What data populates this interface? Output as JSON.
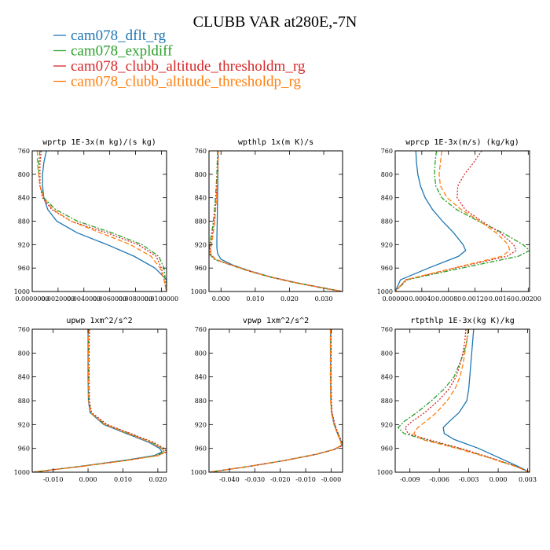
{
  "figure": {
    "title": "CLUBB VAR at280E,-7N",
    "legend": [
      {
        "label": "cam078_dflt_rg",
        "color": "#1f77b4"
      },
      {
        "label": "cam078_expldiff",
        "color": "#2ca02c"
      },
      {
        "label": "cam078_clubb_altitude_thresholdm_rg",
        "color": "#d62728"
      },
      {
        "label": "cam078_clubb_altitude_thresholdp_rg",
        "color": "#ff7f0e"
      }
    ]
  },
  "chart_data": [
    {
      "type": "line",
      "title": "wprtp  1E-3x(m kg)/(s kg)",
      "xlim": [
        0.0,
        0.0104
      ],
      "ylim": [
        760,
        1000
      ],
      "y_inverted": true,
      "yticks": [
        760,
        800,
        840,
        880,
        920,
        960,
        1000
      ],
      "ytick_labels": [
        "760",
        "800",
        "840",
        "880",
        "920",
        "960",
        "1000"
      ],
      "xticks": [
        0.0,
        0.002,
        0.004,
        0.006,
        0.008,
        0.01
      ],
      "xtick_labels": [
        "0.0000000",
        "0.0020000",
        "0.0040000",
        "0.0060000",
        "0.0080000",
        "0.0100000"
      ],
      "y": [
        760,
        780,
        800,
        820,
        840,
        860,
        880,
        900,
        920,
        940,
        960,
        980,
        990,
        1000
      ],
      "series": [
        {
          "color": "#1f77b4",
          "dash": "",
          "values": [
            0.0011,
            0.0009,
            0.0008,
            0.0008,
            0.0009,
            0.0012,
            0.0019,
            0.0035,
            0.0058,
            0.0079,
            0.0095,
            0.0104,
            0.0104,
            0.0104
          ]
        },
        {
          "color": "#2ca02c",
          "dash": "6,2,2,2",
          "values": [
            0.0006,
            0.0005,
            0.0005,
            0.0006,
            0.0009,
            0.0018,
            0.0035,
            0.0062,
            0.0085,
            0.0098,
            0.0102,
            0.0103,
            0.0104,
            0.0104
          ]
        },
        {
          "color": "#d62728",
          "dash": "2,2",
          "values": [
            0.0007,
            0.0006,
            0.0006,
            0.0006,
            0.0008,
            0.0015,
            0.003,
            0.0058,
            0.0082,
            0.0096,
            0.01,
            0.0102,
            0.0103,
            0.0104
          ]
        },
        {
          "color": "#ff7f0e",
          "dash": "6,3",
          "values": [
            0.0004,
            0.0004,
            0.0005,
            0.0006,
            0.0009,
            0.0016,
            0.003,
            0.0053,
            0.0076,
            0.0092,
            0.0099,
            0.0102,
            0.0103,
            0.0104
          ]
        }
      ]
    },
    {
      "type": "line",
      "title": "wpthlp  1x(m K)/s",
      "xlim": [
        -0.0035,
        0.0355
      ],
      "ylim": [
        760,
        1000
      ],
      "y_inverted": true,
      "yticks": [
        760,
        800,
        840,
        880,
        920,
        960,
        1000
      ],
      "ytick_labels": [
        "760",
        "800",
        "840",
        "880",
        "920",
        "960",
        "1000"
      ],
      "xticks": [
        0.0,
        0.01,
        0.02,
        0.03
      ],
      "xtick_labels": [
        "0.000",
        "0.010",
        "0.020",
        "0.030"
      ],
      "y": [
        760,
        800,
        840,
        880,
        910,
        925,
        935,
        945,
        955,
        965,
        975,
        985,
        995,
        1000
      ],
      "series": [
        {
          "color": "#1f77b4",
          "dash": "",
          "values": [
            -0.0008,
            -0.0009,
            -0.001,
            -0.0011,
            -0.0012,
            -0.0012,
            -0.001,
            0.0,
            0.0035,
            0.0085,
            0.0145,
            0.022,
            0.031,
            0.0355
          ]
        },
        {
          "color": "#2ca02c",
          "dash": "6,2,2,2",
          "values": [
            -0.001,
            -0.0012,
            -0.0016,
            -0.0022,
            -0.003,
            -0.0034,
            -0.0035,
            -0.002,
            0.003,
            0.008,
            0.014,
            0.0215,
            0.0305,
            0.0355
          ]
        },
        {
          "color": "#d62728",
          "dash": "2,2",
          "values": [
            -0.0009,
            -0.0011,
            -0.0014,
            -0.002,
            -0.0027,
            -0.0031,
            -0.0032,
            -0.0018,
            0.003,
            0.0082,
            0.0142,
            0.0217,
            0.0307,
            0.0355
          ]
        },
        {
          "color": "#ff7f0e",
          "dash": "6,3",
          "values": [
            -0.0008,
            -0.001,
            -0.0013,
            -0.0018,
            -0.0025,
            -0.0029,
            -0.003,
            -0.0016,
            0.0031,
            0.0083,
            0.0143,
            0.0218,
            0.0308,
            0.0355
          ]
        }
      ]
    },
    {
      "type": "line",
      "title": "wprcp  1E-3x(m/s) (kg/kg)",
      "xlim": [
        0.0,
        0.00202
      ],
      "ylim": [
        760,
        1000
      ],
      "y_inverted": true,
      "yticks": [
        760,
        800,
        840,
        880,
        920,
        960,
        1000
      ],
      "ytick_labels": [
        "760",
        "800",
        "840",
        "880",
        "920",
        "960",
        "1000"
      ],
      "xticks": [
        0.0,
        0.0004,
        0.0008,
        0.0012,
        0.0016,
        0.002
      ],
      "xtick_labels": [
        "0.00000",
        "0.00040",
        "0.00080",
        "0.00120",
        "0.00160",
        "0.00200"
      ],
      "y": [
        760,
        780,
        800,
        820,
        840,
        860,
        880,
        900,
        920,
        930,
        940,
        960,
        980,
        1000
      ],
      "series": [
        {
          "color": "#1f77b4",
          "dash": "",
          "values": [
            0.00031,
            0.00032,
            0.00034,
            0.00038,
            0.00045,
            0.00056,
            0.00071,
            0.00088,
            0.00102,
            0.00106,
            0.00095,
            0.0005,
            8e-05,
            0.0
          ]
        },
        {
          "color": "#2ca02c",
          "dash": "6,2,2,2",
          "values": [
            0.00062,
            0.0006,
            0.00059,
            0.00061,
            0.0007,
            0.00092,
            0.00125,
            0.00162,
            0.00192,
            0.00202,
            0.00185,
            0.001,
            0.00018,
            0.0
          ]
        },
        {
          "color": "#d62728",
          "dash": "2,2",
          "values": [
            0.0013,
            0.00118,
            0.00104,
            0.00094,
            0.00093,
            0.00105,
            0.0013,
            0.00158,
            0.00178,
            0.00182,
            0.00168,
            0.0009,
            0.00016,
            0.0
          ]
        },
        {
          "color": "#ff7f0e",
          "dash": "6,3",
          "values": [
            0.0007,
            0.00068,
            0.00066,
            0.00068,
            0.00078,
            0.00099,
            0.00127,
            0.00152,
            0.0017,
            0.00172,
            0.0016,
            0.00088,
            0.00016,
            0.0
          ]
        }
      ]
    },
    {
      "type": "line",
      "title": "upwp  1xm^2/s^2",
      "xlim": [
        -0.016,
        0.0225
      ],
      "ylim": [
        760,
        1000
      ],
      "y_inverted": true,
      "yticks": [
        760,
        800,
        840,
        880,
        920,
        960,
        1000
      ],
      "ytick_labels": [
        "760",
        "800",
        "840",
        "880",
        "920",
        "960",
        "1000"
      ],
      "xticks": [
        -0.01,
        0.0,
        0.01,
        0.02
      ],
      "xtick_labels": [
        "-0.010",
        "0.000",
        "0.010",
        "0.020"
      ],
      "y": [
        760,
        800,
        840,
        880,
        900,
        920,
        935,
        950,
        960,
        966,
        972,
        980,
        990,
        1000
      ],
      "series": [
        {
          "color": "#1f77b4",
          "dash": "",
          "values": [
            0.0,
            0.0,
            0.0,
            0.0001,
            0.0006,
            0.0045,
            0.011,
            0.0175,
            0.0205,
            0.0212,
            0.019,
            0.0105,
            -0.002,
            -0.016
          ]
        },
        {
          "color": "#2ca02c",
          "dash": "6,2,2,2",
          "values": [
            0.0002,
            0.0002,
            0.0002,
            0.0003,
            0.0008,
            0.005,
            0.0118,
            0.0183,
            0.0212,
            0.0218,
            0.0195,
            0.011,
            -0.0018,
            -0.016
          ]
        },
        {
          "color": "#d62728",
          "dash": "2,2",
          "values": [
            0.0004,
            0.0003,
            0.0003,
            0.0004,
            0.001,
            0.0055,
            0.0122,
            0.0188,
            0.0218,
            0.0225,
            0.02,
            0.0112,
            -0.0016,
            -0.016
          ]
        },
        {
          "color": "#ff7f0e",
          "dash": "6,3",
          "values": [
            0.0001,
            0.0001,
            0.0001,
            0.0002,
            0.0007,
            0.0048,
            0.0114,
            0.018,
            0.021,
            0.0222,
            0.0202,
            0.0114,
            -0.0015,
            -0.016
          ]
        }
      ]
    },
    {
      "type": "line",
      "title": "vpwp  1xm^2/s^2",
      "xlim": [
        -0.048,
        0.0045
      ],
      "ylim": [
        760,
        1000
      ],
      "y_inverted": true,
      "yticks": [
        760,
        800,
        840,
        880,
        920,
        960,
        1000
      ],
      "ytick_labels": [
        "760",
        "800",
        "840",
        "880",
        "920",
        "960",
        "1000"
      ],
      "xticks": [
        -0.04,
        -0.03,
        -0.02,
        -0.01,
        0.0
      ],
      "xtick_labels": [
        "-0.040",
        "-0.030",
        "-0.020",
        "-0.010",
        "-0.000"
      ],
      "y": [
        760,
        800,
        840,
        880,
        900,
        920,
        935,
        948,
        955,
        962,
        970,
        980,
        990,
        1000
      ],
      "series": [
        {
          "color": "#1f77b4",
          "dash": "",
          "values": [
            -0.0002,
            -0.0002,
            -0.0002,
            -0.0001,
            0.0002,
            0.0012,
            0.0025,
            0.0038,
            0.0042,
            0.001,
            -0.006,
            -0.018,
            -0.032,
            -0.048
          ]
        },
        {
          "color": "#2ca02c",
          "dash": "6,2,2,2",
          "values": [
            -0.0001,
            -0.0001,
            -0.0001,
            0.0,
            0.0003,
            0.0014,
            0.0027,
            0.004,
            0.0044,
            0.0012,
            -0.0058,
            -0.0178,
            -0.0318,
            -0.048
          ]
        },
        {
          "color": "#d62728",
          "dash": "2,2",
          "values": [
            0.0,
            0.0,
            0.0,
            0.0001,
            0.0004,
            0.0015,
            0.0028,
            0.0041,
            0.0045,
            0.0013,
            -0.0057,
            -0.0177,
            -0.0317,
            -0.048
          ]
        },
        {
          "color": "#ff7f0e",
          "dash": "6,3",
          "values": [
            -0.0003,
            -0.0003,
            -0.0003,
            -0.0002,
            0.0001,
            0.0011,
            0.0024,
            0.0037,
            0.0041,
            0.0009,
            -0.0061,
            -0.0181,
            -0.0321,
            -0.048
          ]
        }
      ]
    },
    {
      "type": "line",
      "title": "rtpthlp  1E-3x(kg K)/kg",
      "xlim": [
        -0.0105,
        0.0032
      ],
      "ylim": [
        760,
        1000
      ],
      "y_inverted": true,
      "yticks": [
        760,
        800,
        840,
        880,
        920,
        960,
        1000
      ],
      "ytick_labels": [
        "760",
        "800",
        "840",
        "880",
        "920",
        "960",
        "1000"
      ],
      "xticks": [
        -0.009,
        -0.006,
        -0.003,
        0.0,
        0.003
      ],
      "xtick_labels": [
        "-0.009",
        "-0.006",
        "-0.003",
        "0.000",
        "0.003"
      ],
      "y": [
        760,
        780,
        800,
        820,
        840,
        860,
        880,
        900,
        915,
        925,
        935,
        945,
        960,
        975,
        990,
        1000
      ],
      "series": [
        {
          "color": "#1f77b4",
          "dash": "",
          "values": [
            -0.0025,
            -0.0026,
            -0.0027,
            -0.0028,
            -0.0029,
            -0.003,
            -0.0032,
            -0.004,
            -0.005,
            -0.0056,
            -0.0055,
            -0.0045,
            -0.002,
            0.0,
            0.002,
            0.0032
          ]
        },
        {
          "color": "#2ca02c",
          "dash": "6,2,2,2",
          "values": [
            -0.003,
            -0.0032,
            -0.0035,
            -0.004,
            -0.0045,
            -0.0055,
            -0.0068,
            -0.0083,
            -0.0096,
            -0.0102,
            -0.0096,
            -0.0075,
            -0.004,
            -0.001,
            0.0018,
            0.0032
          ]
        },
        {
          "color": "#d62728",
          "dash": "2,2",
          "values": [
            -0.0033,
            -0.0034,
            -0.0036,
            -0.0039,
            -0.0043,
            -0.005,
            -0.0061,
            -0.0075,
            -0.0088,
            -0.0095,
            -0.0092,
            -0.0072,
            -0.0038,
            -0.0009,
            0.0018,
            0.0032
          ]
        },
        {
          "color": "#ff7f0e",
          "dash": "6,3",
          "values": [
            -0.0031,
            -0.0032,
            -0.0034,
            -0.0036,
            -0.0039,
            -0.0044,
            -0.0052,
            -0.0063,
            -0.0074,
            -0.0082,
            -0.0086,
            -0.0078,
            -0.0042,
            -0.0011,
            0.0017,
            0.0032
          ]
        }
      ]
    }
  ]
}
